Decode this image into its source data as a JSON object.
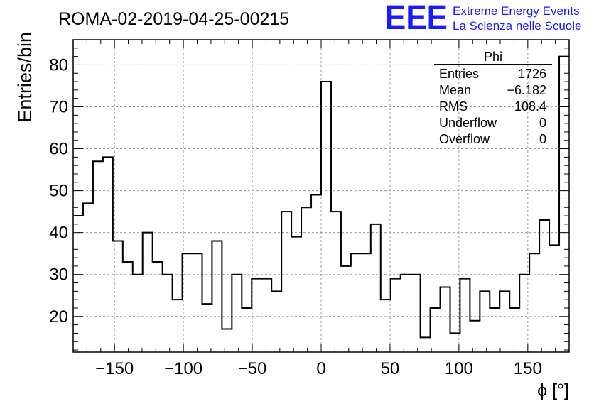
{
  "chart_data": {
    "type": "histogram",
    "title": "ROMA-02-2019-04-25-00215",
    "xlabel": "ϕ [°]",
    "ylabel": "Entries/bin",
    "xlim": [
      -180,
      180
    ],
    "ylim": [
      11.5,
      86
    ],
    "grid": true,
    "bin_edges_start": -180,
    "bin_width": 7.2,
    "values": [
      44,
      47,
      57,
      58,
      38,
      33,
      30,
      40,
      33,
      30,
      24,
      35,
      35,
      23,
      38,
      17,
      30,
      22,
      29,
      29,
      26,
      45,
      39,
      46,
      49,
      76,
      45,
      32,
      35,
      35,
      42,
      24,
      29,
      30,
      30,
      15,
      22,
      27,
      16,
      29,
      19,
      26,
      22,
      26,
      22,
      30,
      35,
      43,
      37,
      82
    ],
    "x_ticks": [
      -150,
      -100,
      -50,
      0,
      50,
      100,
      150
    ],
    "x_tick_labels": [
      "−150",
      "−100",
      "−50",
      "0",
      "50",
      "100",
      "150"
    ],
    "y_ticks": [
      20,
      30,
      40,
      50,
      60,
      70,
      80
    ],
    "y_tick_labels": [
      "20",
      "30",
      "40",
      "50",
      "60",
      "70",
      "80"
    ],
    "stats_box": {
      "title": "Phi",
      "rows": [
        {
          "label": "Entries",
          "value": "1726"
        },
        {
          "label": "Mean",
          "value": "−6.182"
        },
        {
          "label": "RMS",
          "value": "108.4"
        },
        {
          "label": "Underflow",
          "value": "0"
        },
        {
          "label": "Overflow",
          "value": "0"
        }
      ]
    }
  },
  "logo": {
    "letters": "EEE",
    "line1": "Extreme Energy Events",
    "line2": "La Scienza nelle Scuole",
    "color": "#1a1aff"
  }
}
